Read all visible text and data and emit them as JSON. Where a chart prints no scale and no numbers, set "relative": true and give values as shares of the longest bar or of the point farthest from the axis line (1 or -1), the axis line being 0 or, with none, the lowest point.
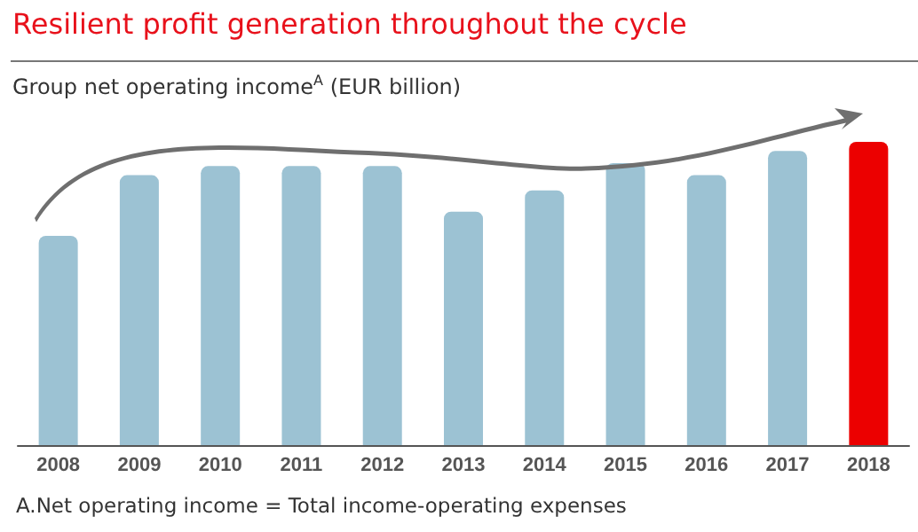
{
  "chart_data": {
    "type": "bar",
    "title": "Resilient profit generation throughout the cycle",
    "subtitle": "Group net operating income$^{A}$ (EUR billion)",
    "categories": [
      "2008",
      "2009",
      "2010",
      "2011",
      "2012",
      "2013",
      "2014",
      "2015",
      "2016",
      "2017",
      "2018"
    ],
    "values": [
      0.69,
      0.89,
      0.92,
      0.92,
      0.92,
      0.77,
      0.84,
      0.93,
      0.89,
      0.97,
      1
    ],
    "colors": [
      "#9cc2d3",
      "#9cc2d3",
      "#9cc2d3",
      "#9cc2d3",
      "#9cc2d3",
      "#9cc2d3",
      "#9cc2d3",
      "#9cc2d3",
      "#9cc2d3",
      "#9cc2d3",
      "#ec0000"
    ],
    "relative": true,
    "grid": false,
    "annotations": [
      "A.Net operating income = Total income-operating expenses"
    ]
  }
}
